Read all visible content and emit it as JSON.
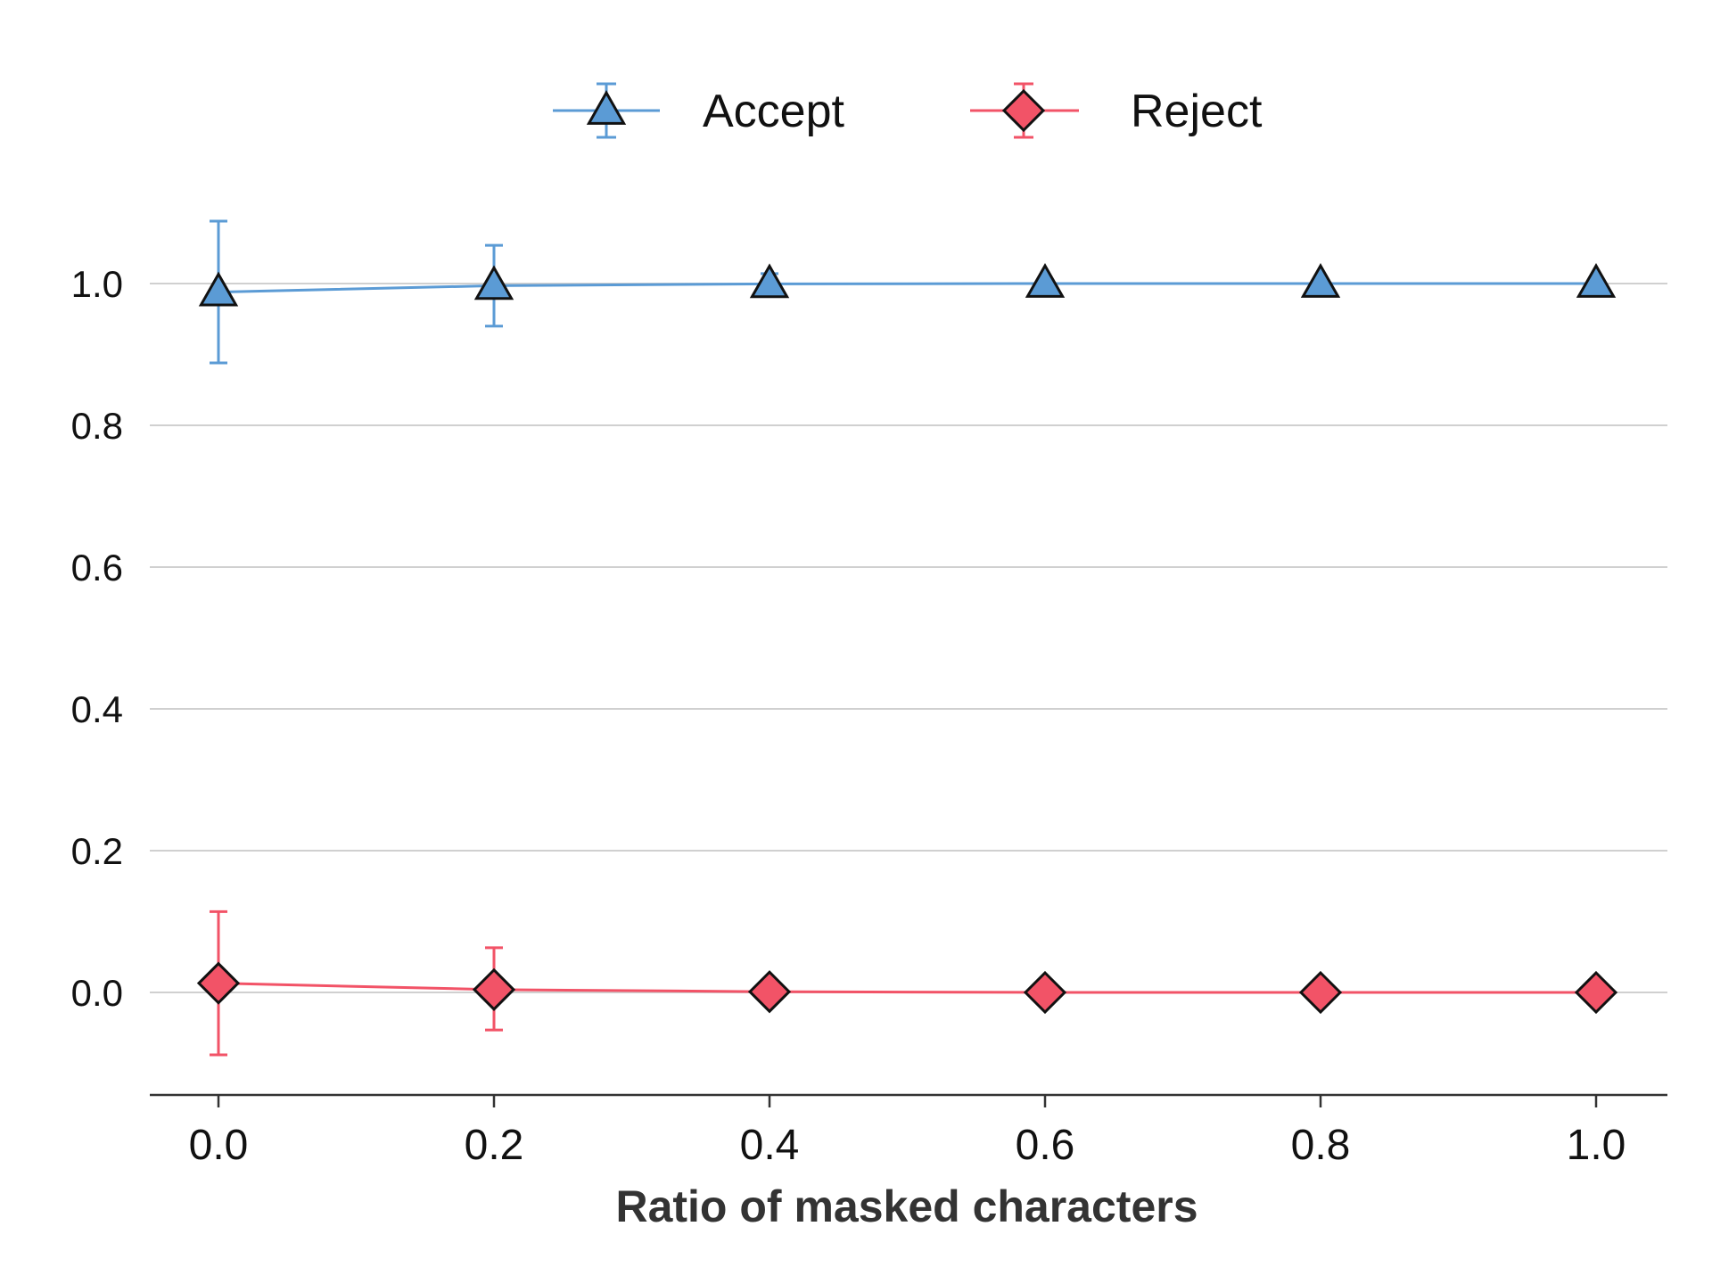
{
  "chart_data": {
    "type": "line",
    "title": "",
    "xlabel": "Ratio of masked characters",
    "ylabel": "",
    "x": [
      0.0,
      0.2,
      0.4,
      0.6,
      0.8,
      1.0
    ],
    "xticks": [
      "0.0",
      "0.2",
      "0.4",
      "0.6",
      "0.8",
      "1.0"
    ],
    "yticks": [
      "0.0",
      "0.2",
      "0.4",
      "0.6",
      "0.8",
      "1.0"
    ],
    "xlim": [
      -0.05,
      1.05
    ],
    "ylim": [
      -0.145,
      1.1
    ],
    "grid": "horizontal",
    "legend_position": "top-center",
    "series": [
      {
        "name": "Accept",
        "color": "#5b9bd5",
        "marker": "triangle",
        "values": [
          0.988,
          0.997,
          0.9995,
          1.0,
          1.0,
          1.0
        ],
        "err_low": [
          0.888,
          0.94,
          0.985,
          1.0,
          1.0,
          1.0
        ],
        "err_high": [
          1.088,
          1.054,
          1.014,
          1.0,
          1.0,
          1.0
        ]
      },
      {
        "name": "Reject",
        "color": "#f25367",
        "marker": "diamond",
        "values": [
          0.013,
          0.004,
          0.001,
          0.0,
          0.0,
          0.0
        ],
        "err_low": [
          -0.088,
          -0.053,
          0.001,
          0.0,
          0.0,
          0.0
        ],
        "err_high": [
          0.114,
          0.063,
          0.001,
          0.0,
          0.0,
          0.0
        ]
      }
    ]
  }
}
